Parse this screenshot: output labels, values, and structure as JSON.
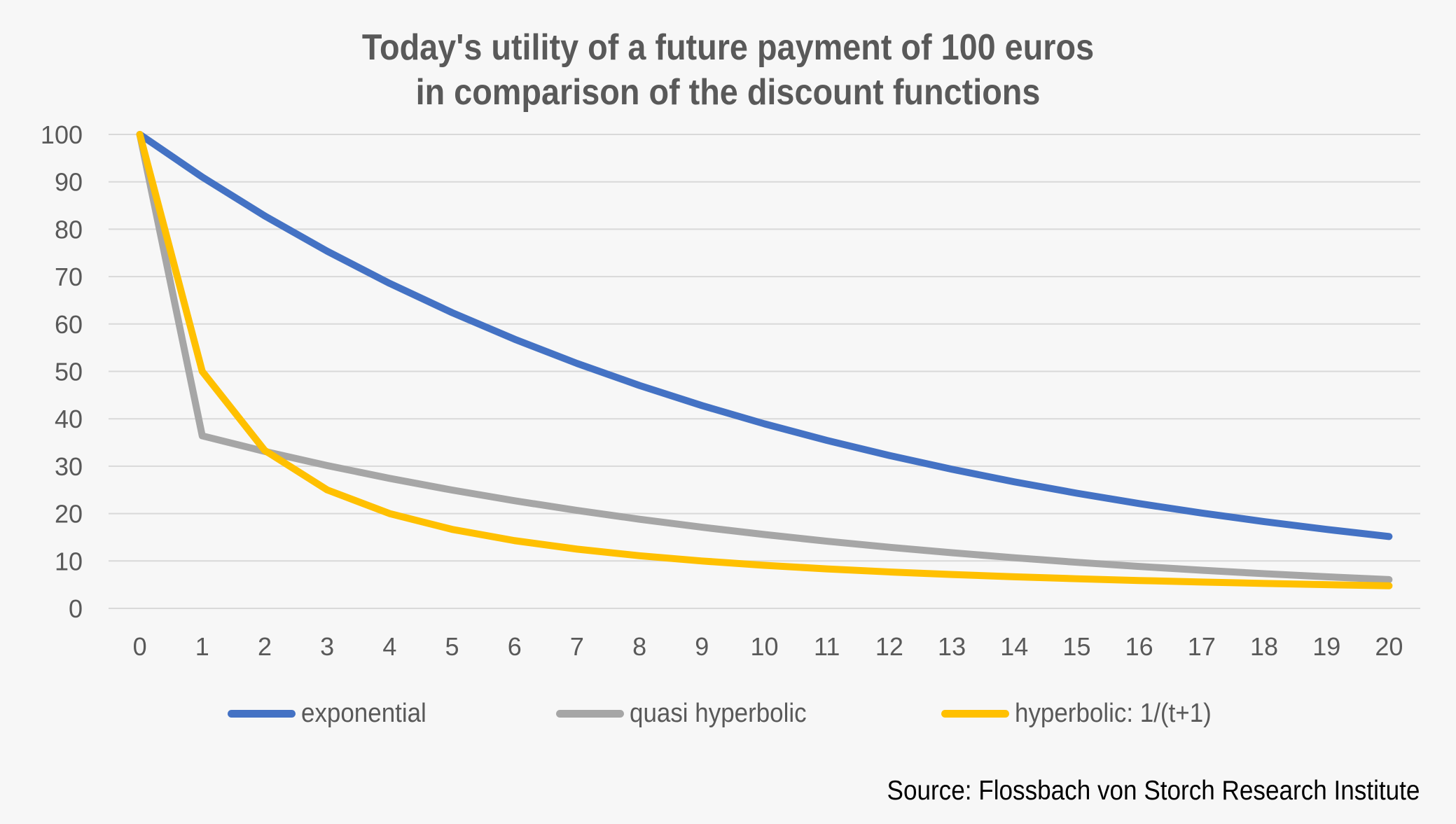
{
  "title": {
    "line1": "Today's utility of a future payment of 100 euros",
    "line2": "in comparison of the discount functions"
  },
  "source": "Source: Flossbach von Storch Research Institute",
  "colors": {
    "background": "#f7f7f7",
    "gridline": "#d9d9d9",
    "axis_text": "#595959",
    "title_text": "#595959",
    "legend_text": "#595959",
    "source_text": "#000000",
    "series_exponential": "#4472C4",
    "series_quasi_hyperbolic": "#A6A6A6",
    "series_hyperbolic": "#FFC000"
  },
  "chart_data": {
    "type": "line",
    "title": "Today's utility of a future payment of 100 euros in comparison of the discount functions",
    "xlabel": "",
    "ylabel": "",
    "x": [
      0,
      1,
      2,
      3,
      4,
      5,
      6,
      7,
      8,
      9,
      10,
      11,
      12,
      13,
      14,
      15,
      16,
      17,
      18,
      19,
      20
    ],
    "ylim": [
      0,
      100
    ],
    "y_ticks": [
      0,
      10,
      20,
      30,
      40,
      50,
      60,
      70,
      80,
      90,
      100
    ],
    "grid": "horizontal",
    "legend_position": "bottom",
    "line_width": 10,
    "series": [
      {
        "name": "exponential",
        "color": "#4472C4",
        "values": [
          100,
          91,
          82.81,
          75.36,
          68.57,
          62.4,
          56.79,
          51.68,
          47.03,
          42.79,
          38.94,
          35.44,
          32.25,
          29.35,
          26.7,
          24.3,
          22.11,
          20.12,
          18.31,
          16.66,
          15.16
        ]
      },
      {
        "name": "quasi hyperbolic",
        "color": "#A6A6A6",
        "values": [
          100,
          36.4,
          33.12,
          30.14,
          27.43,
          24.96,
          22.71,
          20.67,
          18.81,
          17.12,
          15.58,
          14.17,
          12.9,
          11.74,
          10.68,
          9.72,
          8.85,
          8.05,
          7.32,
          6.67,
          6.07
        ]
      },
      {
        "name": "hyperbolic: 1/(t+1)",
        "color": "#FFC000",
        "values": [
          100,
          50,
          33.33,
          25,
          20,
          16.67,
          14.29,
          12.5,
          11.11,
          10,
          9.09,
          8.33,
          7.69,
          7.14,
          6.67,
          6.25,
          5.88,
          5.56,
          5.26,
          5,
          4.76
        ]
      }
    ]
  }
}
